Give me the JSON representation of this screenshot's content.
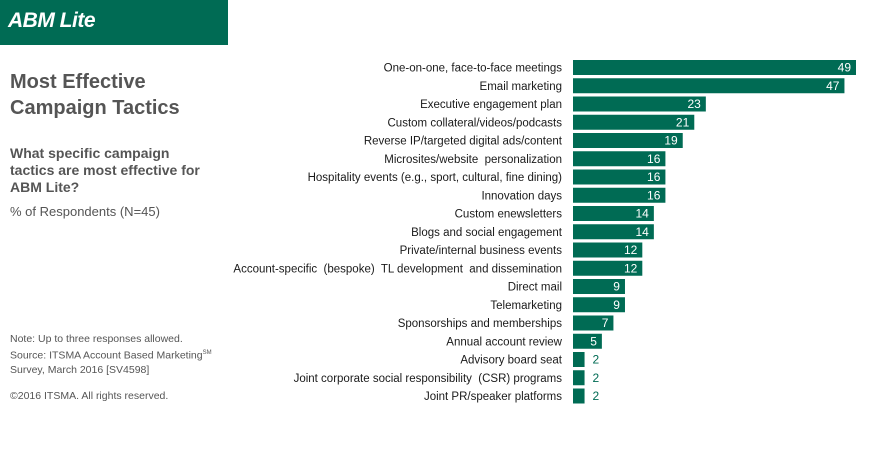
{
  "banner": {
    "label": "ABM Lite"
  },
  "title": "Most Effective Campaign Tactics",
  "question": "What specific campaign tactics are most effective for ABM Lite?",
  "respondents": "% of Respondents (N=45)",
  "note": {
    "line1": "Note: Up to three responses allowed.",
    "line2": "Source: ITSMA Account Based Marketing",
    "sup": "SM",
    "line3": "Survey, March 2016 [SV4598]"
  },
  "copyright": "©2016 ITSMA. All rights reserved.",
  "colors": {
    "bar": "#006b54",
    "value_inside": "#ffffff",
    "value_outside": "#006b54"
  },
  "chart_data": {
    "type": "bar",
    "orientation": "horizontal",
    "categories": [
      "One-on-one, face-to-face meetings",
      "Email marketing",
      "Executive engagement plan",
      "Custom collateral/videos/podcasts",
      "Reverse IP/targeted digital ads/content",
      "Microsites/website  personalization",
      "Hospitality events (e.g., sport, cultural, fine dining)",
      "Innovation days",
      "Custom enewsletters",
      "Blogs and social engagement",
      "Private/internal business events",
      "Account-specific  (bespoke)  TL development  and dissemination",
      "Direct mail",
      "Telemarketing",
      "Sponsorships and memberships",
      "Annual account review",
      "Advisory board seat",
      "Joint corporate social responsibility  (CSR) programs",
      "Joint PR/speaker platforms"
    ],
    "values": [
      49,
      47,
      23,
      21,
      19,
      16,
      16,
      16,
      14,
      14,
      12,
      12,
      9,
      9,
      7,
      5,
      2,
      2,
      2
    ],
    "xlim": [
      0,
      49
    ],
    "grid": false,
    "legend": "none"
  }
}
